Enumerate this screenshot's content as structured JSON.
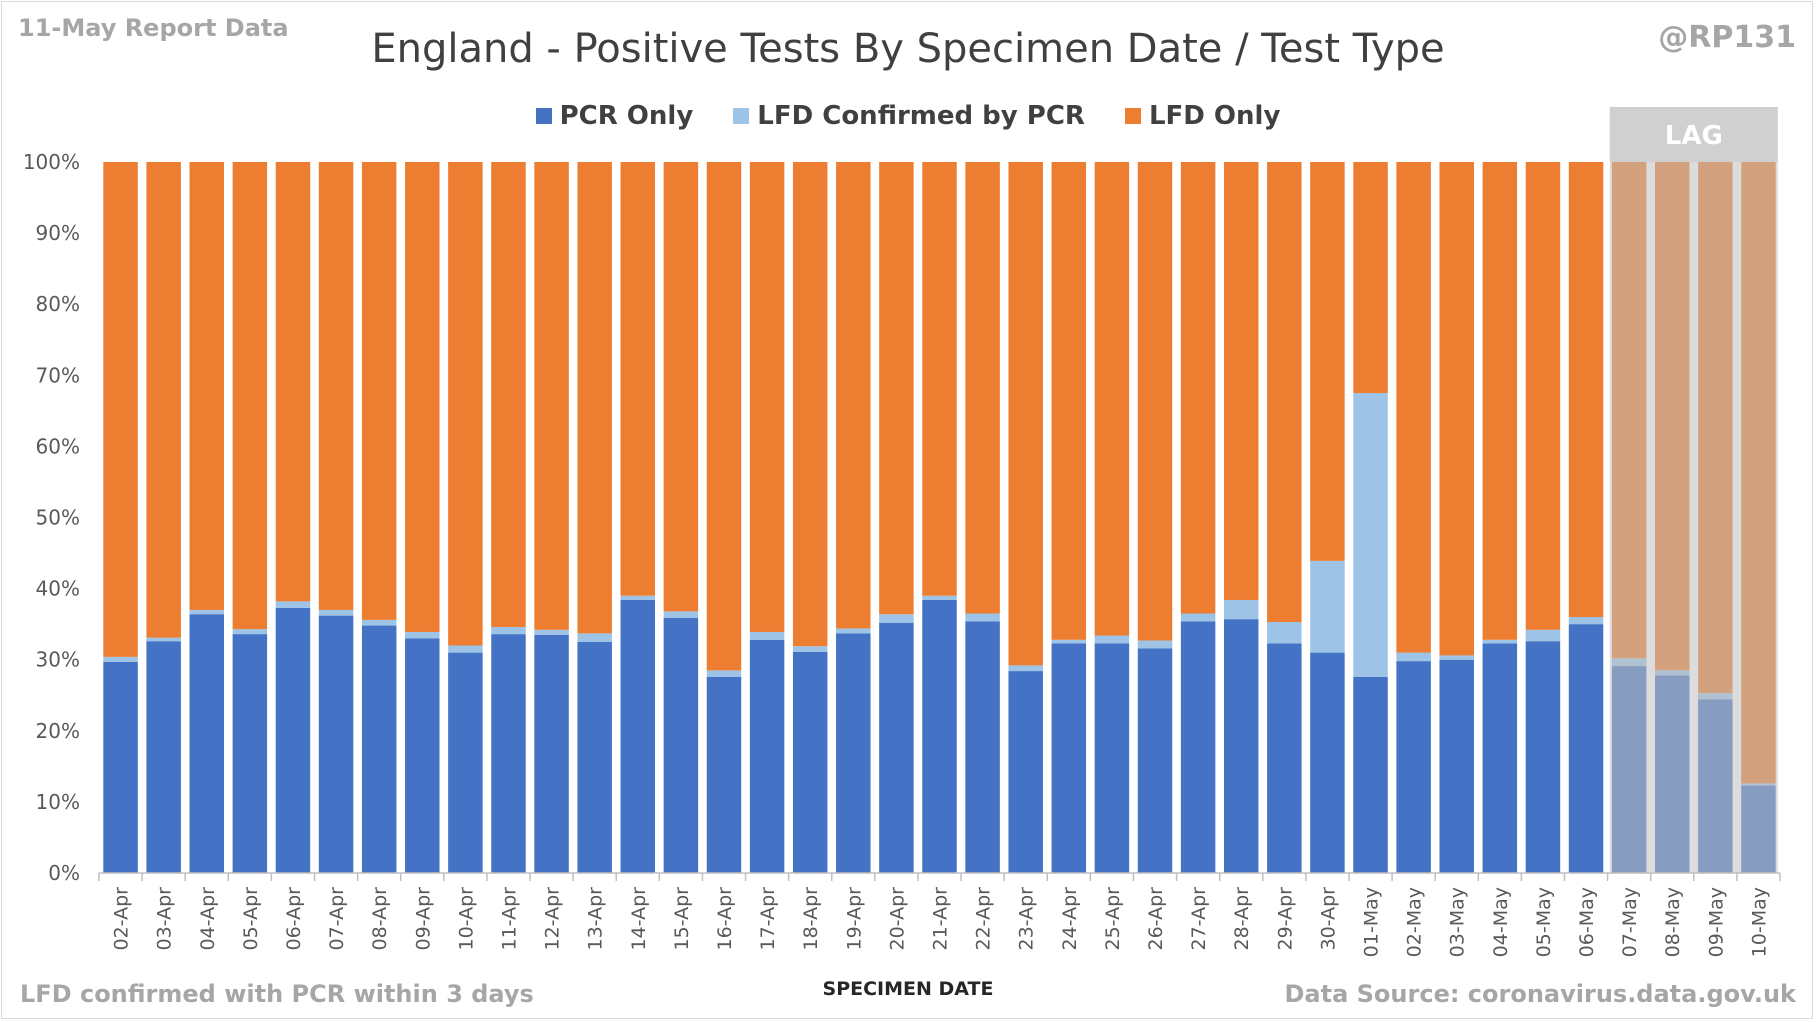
{
  "header": {
    "report_label": "11-May Report Data",
    "handle": "@RP131"
  },
  "footer": {
    "note": "LFD confirmed with PCR within 3 days",
    "source": "Data Source: coronavirus.data.gov.uk"
  },
  "colors": {
    "pcr_only": "#4472c4",
    "lfd_confirmed": "#9dc3e6",
    "lfd_only": "#ed7d31",
    "lag_overlay": "#bfbfbf",
    "lag_header": "#d0d0d0"
  },
  "chart_data": {
    "type": "bar",
    "stacked": true,
    "title": "England - Positive Tests By Specimen Date / Test Type",
    "xlabel": "SPECIMEN DATE",
    "ylabel": "",
    "ylim": [
      0,
      100
    ],
    "yticks": [
      "0%",
      "10%",
      "20%",
      "30%",
      "40%",
      "50%",
      "60%",
      "70%",
      "80%",
      "90%",
      "100%"
    ],
    "grid": false,
    "legend_position": "top-center",
    "categories": [
      "02-Apr",
      "03-Apr",
      "04-Apr",
      "05-Apr",
      "06-Apr",
      "07-Apr",
      "08-Apr",
      "09-Apr",
      "10-Apr",
      "11-Apr",
      "12-Apr",
      "13-Apr",
      "14-Apr",
      "15-Apr",
      "16-Apr",
      "17-Apr",
      "18-Apr",
      "19-Apr",
      "20-Apr",
      "21-Apr",
      "22-Apr",
      "23-Apr",
      "24-Apr",
      "25-Apr",
      "26-Apr",
      "27-Apr",
      "28-Apr",
      "29-Apr",
      "30-Apr",
      "01-May",
      "02-May",
      "03-May",
      "04-May",
      "05-May",
      "06-May",
      "07-May",
      "08-May",
      "09-May",
      "10-May"
    ],
    "series": [
      {
        "name": "PCR Only",
        "color": "#4472c4",
        "values": [
          29.7,
          32.6,
          36.4,
          33.6,
          37.3,
          36.2,
          34.8,
          33.0,
          31.0,
          33.6,
          33.5,
          32.5,
          38.4,
          35.9,
          27.6,
          32.8,
          31.1,
          33.7,
          35.2,
          38.4,
          35.4,
          28.4,
          32.3,
          32.3,
          31.6,
          35.4,
          35.7,
          32.3,
          31.0,
          27.6,
          29.8,
          30.0,
          32.3,
          32.6,
          35.0,
          29.1,
          27.8,
          24.4,
          12.3
        ]
      },
      {
        "name": "LFD Confirmed by PCR",
        "color": "#9dc3e6",
        "values": [
          0.7,
          0.5,
          0.6,
          0.7,
          0.9,
          0.8,
          0.8,
          0.9,
          1.0,
          1.0,
          0.7,
          1.2,
          0.6,
          0.9,
          0.9,
          1.1,
          0.8,
          0.7,
          1.2,
          0.6,
          1.1,
          0.8,
          0.5,
          1.1,
          1.1,
          1.1,
          2.7,
          3.0,
          12.9,
          39.9,
          1.2,
          0.6,
          0.5,
          1.6,
          1.0,
          1.1,
          0.7,
          0.9,
          0.3
        ]
      },
      {
        "name": "LFD Only",
        "color": "#ed7d31",
        "values": [
          69.6,
          66.9,
          63.0,
          65.7,
          61.8,
          63.0,
          64.4,
          66.1,
          68.0,
          65.4,
          65.8,
          66.3,
          61.0,
          63.2,
          71.5,
          66.1,
          68.1,
          65.6,
          63.6,
          61.0,
          63.5,
          70.8,
          67.2,
          66.6,
          67.3,
          63.5,
          61.6,
          64.7,
          56.1,
          32.5,
          69.0,
          69.4,
          67.2,
          65.8,
          64.0,
          69.8,
          71.5,
          74.7,
          87.4
        ]
      }
    ],
    "annotation": {
      "text": "LAG",
      "from_category": "07-May",
      "to_category": "10-May"
    }
  }
}
